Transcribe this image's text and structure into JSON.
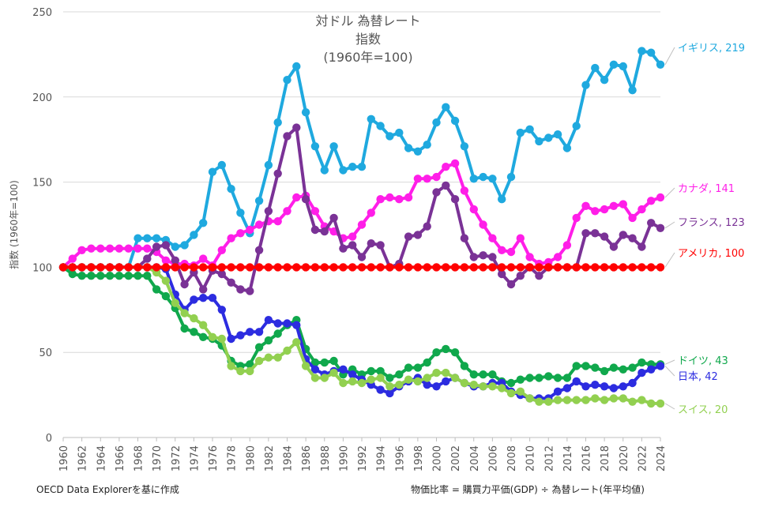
{
  "chart_data": {
    "type": "line",
    "title": [
      "対ドル 為替レート",
      "指数",
      "(1960年=100)"
    ],
    "xlabel": "",
    "ylabel": "指数 (1960年=100)",
    "ylim": [
      0,
      250
    ],
    "yticks": [
      0,
      50,
      100,
      150,
      200,
      250
    ],
    "xlim": [
      1960,
      2024
    ],
    "xticks": [
      1960,
      1962,
      1964,
      1966,
      1968,
      1970,
      1972,
      1974,
      1976,
      1978,
      1980,
      1982,
      1984,
      1986,
      1988,
      1990,
      1992,
      1994,
      1996,
      1998,
      2000,
      2002,
      2004,
      2006,
      2008,
      2010,
      2012,
      2014,
      2016,
      2018,
      2020,
      2022,
      2024
    ],
    "grid": "horizontal",
    "x": [
      1960,
      1961,
      1962,
      1963,
      1964,
      1965,
      1966,
      1967,
      1968,
      1969,
      1970,
      1971,
      1972,
      1973,
      1974,
      1975,
      1976,
      1977,
      1978,
      1979,
      1980,
      1981,
      1982,
      1983,
      1984,
      1985,
      1986,
      1987,
      1988,
      1989,
      1990,
      1991,
      1992,
      1993,
      1994,
      1995,
      1996,
      1997,
      1998,
      1999,
      2000,
      2001,
      2002,
      2003,
      2004,
      2005,
      2006,
      2007,
      2008,
      2009,
      2010,
      2011,
      2012,
      2013,
      2014,
      2015,
      2016,
      2017,
      2018,
      2019,
      2020,
      2021,
      2022,
      2023,
      2024
    ],
    "series": [
      {
        "name": "イギリス",
        "label": "イギリス, 219",
        "color": "#1fa9df",
        "values": [
          100,
          100,
          100,
          100,
          100,
          100,
          100,
          100,
          117,
          117,
          117,
          116,
          112,
          113,
          119,
          126,
          156,
          160,
          146,
          132,
          120,
          139,
          160,
          185,
          210,
          218,
          191,
          171,
          157,
          171,
          157,
          159,
          159,
          187,
          183,
          177,
          179,
          170,
          168,
          172,
          185,
          194,
          186,
          171,
          152,
          153,
          152,
          140,
          153,
          179,
          181,
          174,
          176,
          178,
          170,
          183,
          207,
          217,
          210,
          219,
          218,
          204,
          227,
          226,
          219
        ]
      },
      {
        "name": "カナダ",
        "label": "カナダ, 141",
        "color": "#ff1ee8",
        "values": [
          100,
          105,
          110,
          111,
          111,
          111,
          111,
          111,
          111,
          111,
          109,
          104,
          102,
          102,
          101,
          105,
          101,
          110,
          117,
          120,
          122,
          125,
          127,
          127,
          133,
          141,
          142,
          133,
          124,
          121,
          117,
          118,
          125,
          132,
          140,
          141,
          140,
          141,
          152,
          152,
          153,
          159,
          161,
          145,
          134,
          125,
          117,
          110,
          109,
          117,
          106,
          102,
          103,
          106,
          113,
          129,
          136,
          133,
          134,
          136,
          137,
          129,
          134,
          139,
          141
        ]
      },
      {
        "name": "フランス",
        "label": "フランス, 123",
        "color": "#7a3296",
        "values": [
          100,
          100,
          100,
          100,
          100,
          100,
          100,
          100,
          100,
          105,
          112,
          113,
          104,
          90,
          97,
          87,
          98,
          96,
          91,
          87,
          86,
          110,
          133,
          155,
          177,
          182,
          140,
          122,
          121,
          129,
          111,
          113,
          106,
          114,
          113,
          100,
          102,
          118,
          119,
          124,
          144,
          148,
          140,
          117,
          106,
          107,
          106,
          96,
          90,
          95,
          100,
          95,
          100,
          100,
          100,
          100,
          120,
          120,
          118,
          112,
          119,
          117,
          112,
          126,
          123
        ]
      },
      {
        "name": "アメリカ",
        "label": "アメリカ, 100",
        "color": "#ff0000",
        "values": [
          100,
          100,
          100,
          100,
          100,
          100,
          100,
          100,
          100,
          100,
          100,
          100,
          100,
          100,
          100,
          100,
          100,
          100,
          100,
          100,
          100,
          100,
          100,
          100,
          100,
          100,
          100,
          100,
          100,
          100,
          100,
          100,
          100,
          100,
          100,
          100,
          100,
          100,
          100,
          100,
          100,
          100,
          100,
          100,
          100,
          100,
          100,
          100,
          100,
          100,
          100,
          100,
          100,
          100,
          100,
          100,
          100,
          100,
          100,
          100,
          100,
          100,
          100,
          100,
          100
        ]
      },
      {
        "name": "ドイツ",
        "label": "ドイツ, 43",
        "color": "#10a84c",
        "values": [
          100,
          96,
          95,
          95,
          95,
          95,
          95,
          95,
          95,
          95,
          87,
          83,
          76,
          64,
          62,
          59,
          58,
          54,
          45,
          42,
          43,
          53,
          57,
          61,
          66,
          69,
          52,
          44,
          44,
          45,
          37,
          40,
          37,
          39,
          39,
          35,
          37,
          41,
          41,
          44,
          50,
          52,
          50,
          42,
          37,
          37,
          37,
          33,
          32,
          34,
          35,
          35,
          36,
          35,
          35,
          42,
          42,
          41,
          39,
          41,
          40,
          41,
          44,
          43,
          43
        ]
      },
      {
        "name": "日本",
        "label": "日本, 42",
        "color": "#2c2ce0",
        "values": [
          100,
          100,
          100,
          100,
          100,
          100,
          100,
          100,
          100,
          100,
          100,
          99,
          84,
          75,
          81,
          82,
          82,
          75,
          58,
          60,
          62,
          62,
          69,
          67,
          67,
          66,
          46,
          40,
          37,
          39,
          40,
          37,
          34,
          31,
          28,
          26,
          30,
          33,
          35,
          31,
          30,
          33,
          35,
          32,
          30,
          30,
          32,
          32,
          27,
          25,
          23,
          23,
          23,
          27,
          29,
          33,
          30,
          31,
          30,
          29,
          30,
          32,
          38,
          40,
          42
        ]
      },
      {
        "name": "スイス",
        "label": "スイス, 20",
        "color": "#92d050",
        "values": [
          100,
          100,
          100,
          100,
          100,
          100,
          100,
          100,
          100,
          100,
          97,
          92,
          79,
          73,
          70,
          66,
          59,
          58,
          42,
          39,
          39,
          45,
          47,
          47,
          51,
          56,
          42,
          35,
          35,
          38,
          32,
          33,
          32,
          34,
          35,
          30,
          31,
          34,
          33,
          35,
          38,
          38,
          35,
          32,
          31,
          30,
          30,
          29,
          26,
          27,
          23,
          21,
          21,
          22,
          22,
          22,
          22,
          23,
          22,
          23,
          23,
          21,
          22,
          20,
          20
        ]
      }
    ]
  },
  "notes": {
    "source": "OECD Data Explorerを基に作成",
    "formula": "物価比率 = 購買力平価(GDP) ÷ 為替レート(年平均値)"
  }
}
